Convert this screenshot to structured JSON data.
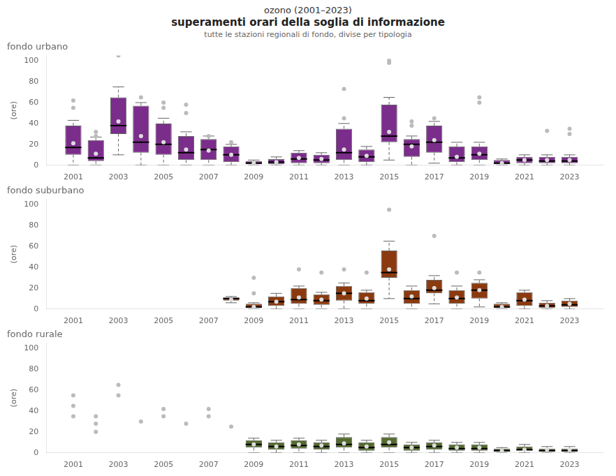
{
  "title": [
    "ozono (2001–2023)",
    "superamenti orari della soglia di informazione"
  ],
  "subtitle": "tutte le stazioni regionali di fondo, divise per tipologia",
  "chart_data": [
    {
      "type": "box",
      "title": "fondo urbano",
      "ylabel": "(ore)",
      "xlim": [
        1999.8,
        2024.5
      ],
      "xticks": [
        2001,
        2003,
        2005,
        2007,
        2009,
        2011,
        2013,
        2015,
        2017,
        2019,
        2021,
        2023
      ],
      "ylim": [
        0,
        105
      ],
      "yticks": [
        0,
        20,
        40,
        60,
        80,
        100
      ],
      "grid": false,
      "series": [
        {
          "type": "box",
          "color": "#7B2D8B",
          "x": [
            2001,
            2002,
            2003,
            2004,
            2005,
            2006,
            2007,
            2008,
            2009,
            2010,
            2011,
            2012,
            2013,
            2014,
            2015,
            2016,
            2017,
            2018,
            2019,
            2020,
            2021,
            2022,
            2023
          ],
          "q1": [
            10,
            4,
            30,
            12,
            10,
            5,
            5,
            3,
            1,
            1,
            2,
            2,
            5,
            3,
            22,
            8,
            12,
            3,
            5,
            1,
            2,
            2,
            2
          ],
          "median": [
            17,
            7,
            38,
            22,
            20,
            12,
            15,
            10,
            2,
            3,
            6,
            5,
            12,
            8,
            28,
            20,
            22,
            7,
            10,
            2,
            5,
            4,
            4
          ],
          "q3": [
            38,
            24,
            65,
            57,
            40,
            28,
            25,
            18,
            4,
            6,
            12,
            10,
            35,
            15,
            58,
            25,
            38,
            18,
            18,
            5,
            8,
            8,
            8
          ],
          "whislo": [
            0,
            0,
            10,
            0,
            0,
            0,
            0,
            0,
            0,
            0,
            0,
            0,
            0,
            0,
            5,
            0,
            2,
            0,
            0,
            0,
            0,
            0,
            0
          ],
          "whishi": [
            43,
            27,
            75,
            60,
            45,
            32,
            28,
            20,
            5,
            8,
            14,
            12,
            40,
            18,
            65,
            28,
            42,
            22,
            22,
            6,
            10,
            10,
            10
          ]
        },
        {
          "type": "scatter",
          "color": "#DDDDDD",
          "x": [
            2001,
            2002,
            2003,
            2004,
            2005,
            2006,
            2007,
            2008,
            2009,
            2010,
            2011,
            2012,
            2013,
            2014,
            2015,
            2016,
            2017,
            2018,
            2019,
            2020,
            2021,
            2022,
            2023
          ],
          "values": [
            21,
            11,
            42,
            28,
            22,
            15,
            14,
            10,
            2,
            3,
            7,
            6,
            15,
            9,
            32,
            18,
            24,
            8,
            11,
            2,
            5,
            5,
            5
          ]
        },
        {
          "type": "scatter",
          "color": "#BBBBBB",
          "x": [
            2001,
            2001,
            2002,
            2002,
            2003,
            2004,
            2005,
            2005,
            2006,
            2006,
            2007,
            2008,
            2013,
            2013,
            2015,
            2015,
            2016,
            2016,
            2017,
            2019,
            2019,
            2022,
            2023,
            2023
          ],
          "values": [
            55,
            62,
            28,
            32,
            105,
            65,
            55,
            60,
            50,
            58,
            28,
            22,
            45,
            73,
            98,
            100,
            38,
            42,
            45,
            60,
            65,
            33,
            30,
            35
          ]
        }
      ]
    },
    {
      "type": "box",
      "title": "fondo suburbano",
      "ylabel": "(ore)",
      "xlim": [
        1999.8,
        2024.5
      ],
      "xticks": [
        2001,
        2003,
        2005,
        2007,
        2009,
        2011,
        2013,
        2015,
        2017,
        2019,
        2021,
        2023
      ],
      "ylim": [
        0,
        105
      ],
      "yticks": [
        0,
        20,
        40,
        60,
        80,
        100
      ],
      "grid": false,
      "series": [
        {
          "type": "box",
          "color": "#8B3A0F",
          "x": [
            2008,
            2009,
            2010,
            2011,
            2012,
            2013,
            2014,
            2015,
            2016,
            2017,
            2018,
            2019,
            2020,
            2021,
            2022,
            2023
          ],
          "q1": [
            8,
            1,
            3,
            5,
            4,
            8,
            5,
            30,
            5,
            15,
            5,
            10,
            1,
            3,
            1,
            2
          ],
          "median": [
            10,
            2,
            7,
            9,
            8,
            15,
            8,
            35,
            10,
            18,
            10,
            18,
            2,
            8,
            3,
            4
          ],
          "q3": [
            11,
            5,
            12,
            20,
            14,
            22,
            16,
            56,
            18,
            28,
            18,
            25,
            5,
            16,
            6,
            8
          ],
          "whislo": [
            6,
            0,
            0,
            0,
            0,
            0,
            0,
            10,
            0,
            5,
            0,
            2,
            0,
            0,
            0,
            0
          ],
          "whishi": [
            12,
            6,
            15,
            22,
            16,
            25,
            18,
            65,
            22,
            32,
            22,
            28,
            6,
            18,
            8,
            10
          ]
        },
        {
          "type": "scatter",
          "color": "#DDDDDD",
          "x": [
            2008,
            2009,
            2010,
            2011,
            2012,
            2013,
            2014,
            2015,
            2016,
            2017,
            2018,
            2019,
            2020,
            2021,
            2022,
            2023
          ],
          "values": [
            9,
            2,
            7,
            11,
            9,
            15,
            10,
            38,
            12,
            20,
            11,
            18,
            2,
            9,
            3,
            5
          ]
        },
        {
          "type": "scatter",
          "color": "#BBBBBB",
          "x": [
            2009,
            2009,
            2011,
            2012,
            2013,
            2014,
            2015,
            2017,
            2018,
            2019
          ],
          "values": [
            15,
            30,
            38,
            35,
            38,
            35,
            95,
            70,
            35,
            35
          ]
        }
      ]
    },
    {
      "type": "box",
      "title": "fondo rurale",
      "ylabel": "(ore)",
      "xlim": [
        1999.8,
        2024.5
      ],
      "xticks": [
        2001,
        2003,
        2005,
        2007,
        2009,
        2011,
        2013,
        2015,
        2017,
        2019,
        2021,
        2023
      ],
      "ylim": [
        0,
        105
      ],
      "yticks": [
        0,
        20,
        40,
        60,
        80,
        100
      ],
      "grid": false,
      "series": [
        {
          "type": "box",
          "color": "#556B2F",
          "x": [
            2009,
            2010,
            2011,
            2012,
            2013,
            2014,
            2015,
            2016,
            2017,
            2018,
            2019,
            2020,
            2021,
            2022,
            2023
          ],
          "q1": [
            5,
            3,
            4,
            3,
            5,
            2,
            5,
            2,
            3,
            2,
            2,
            1,
            2,
            1,
            1
          ],
          "median": [
            8,
            6,
            7,
            6,
            8,
            5,
            8,
            5,
            6,
            4,
            4,
            2,
            3,
            2,
            2
          ],
          "q3": [
            12,
            10,
            12,
            10,
            15,
            10,
            15,
            8,
            10,
            8,
            8,
            4,
            6,
            4,
            4
          ],
          "whislo": [
            0,
            0,
            0,
            0,
            0,
            0,
            0,
            0,
            0,
            0,
            0,
            0,
            0,
            0,
            0
          ],
          "whishi": [
            14,
            12,
            14,
            12,
            18,
            12,
            18,
            10,
            12,
            10,
            10,
            5,
            8,
            6,
            6
          ]
        },
        {
          "type": "scatter",
          "color": "#DDDDDD",
          "x": [
            2009,
            2010,
            2011,
            2012,
            2013,
            2014,
            2015,
            2016,
            2017,
            2018,
            2019,
            2020,
            2021,
            2022,
            2023
          ],
          "values": [
            8,
            6,
            8,
            7,
            9,
            6,
            10,
            5,
            7,
            5,
            5,
            2,
            3,
            3,
            3
          ]
        },
        {
          "type": "scatter",
          "color": "#BBBBBB",
          "x": [
            2001,
            2001,
            2001,
            2002,
            2002,
            2002,
            2003,
            2003,
            2004,
            2005,
            2005,
            2006,
            2007,
            2007,
            2008
          ],
          "values": [
            35,
            45,
            55,
            20,
            28,
            35,
            55,
            65,
            30,
            35,
            42,
            28,
            35,
            42,
            25
          ]
        }
      ]
    }
  ]
}
